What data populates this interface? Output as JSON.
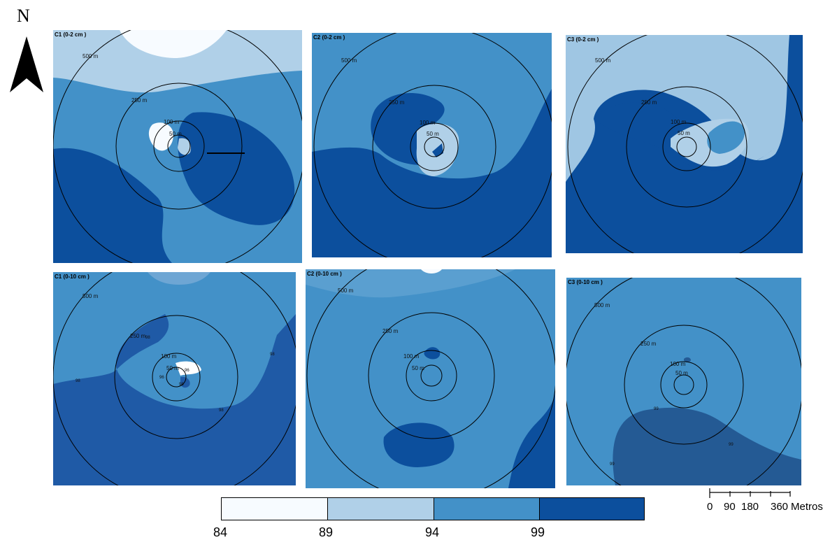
{
  "north": {
    "label": "N"
  },
  "panels": [
    {
      "id": "c1-0-2",
      "title": "C1 (0-2 cm )",
      "rings": [
        "500 m",
        "250 m",
        "100 m",
        "50 m"
      ]
    },
    {
      "id": "c2-0-2",
      "title": "C2 (0-2 cm )",
      "rings": [
        "500 m",
        "250 m",
        "100 m",
        "50 m"
      ]
    },
    {
      "id": "c3-0-2",
      "title": "C3 (0-2 cm )",
      "rings": [
        "500 m",
        "250 m",
        "100 m",
        "50 m"
      ]
    },
    {
      "id": "c1-0-10",
      "title": "C1 (0-10 cm )",
      "rings": [
        "500 m",
        "250 m",
        "100 m",
        "50 m"
      ],
      "contours": [
        "98",
        "98",
        "98",
        "96",
        "96",
        "98",
        "98"
      ]
    },
    {
      "id": "c2-0-10",
      "title": "C2 (0-10 cm )",
      "rings": [
        "500 m",
        "250 m",
        "100 m",
        "50 m"
      ]
    },
    {
      "id": "c3-0-10",
      "title": "C3 (0-10 cm )",
      "rings": [
        "500 m",
        "250 m",
        "100 m",
        "50 m"
      ],
      "contours": [
        "99",
        "99",
        "99"
      ]
    }
  ],
  "legend": {
    "breaks": [
      "84",
      "89",
      "94",
      "99"
    ],
    "colors": [
      "#f7fbff",
      "#b0d0e8",
      "#4391c8",
      "#0c4f9d"
    ]
  },
  "scale": {
    "ticks": [
      "0",
      "90",
      "180",
      "360"
    ],
    "unit": "Metros"
  },
  "colors": {
    "c1": "#f7fbff",
    "c2": "#b0d0e8",
    "c3": "#4391c8",
    "c4": "#0c4f9d",
    "c5": "#1f5aa6"
  }
}
